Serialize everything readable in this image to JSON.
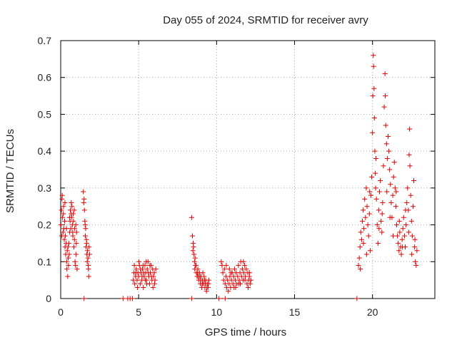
{
  "chart_data": {
    "type": "scatter",
    "title": "Day 055 of 2024, SRMTID for receiver avry",
    "xlabel": "GPS time / hours",
    "ylabel": "SRMTID / TECUs",
    "xlim": [
      0,
      24
    ],
    "ylim": [
      0,
      0.7
    ],
    "xticks": [
      0,
      5,
      10,
      15,
      20
    ],
    "yticks": [
      0,
      0.1,
      0.2,
      0.3,
      0.4,
      0.5,
      0.6,
      0.7
    ],
    "xtick_labels": [
      "0",
      "5",
      "10",
      "15",
      "20"
    ],
    "ytick_labels": [
      "0",
      "0.1",
      "0.2",
      "0.3",
      "0.4",
      "0.5",
      "0.6",
      "0.7"
    ],
    "grid": true,
    "marker_color": "#e00000",
    "series": [
      {
        "name": "SRMTID",
        "marker": "plus",
        "points": [
          [
            0.02,
            0.2
          ],
          [
            0.05,
            0.24
          ],
          [
            0.08,
            0.27
          ],
          [
            0.1,
            0.28
          ],
          [
            0.12,
            0.22
          ],
          [
            0.15,
            0.18
          ],
          [
            0.18,
            0.25
          ],
          [
            0.2,
            0.19
          ],
          [
            0.23,
            0.16
          ],
          [
            0.25,
            0.21
          ],
          [
            0.28,
            0.14
          ],
          [
            0.3,
            0.17
          ],
          [
            0.32,
            0.12
          ],
          [
            0.35,
            0.15
          ],
          [
            0.38,
            0.1
          ],
          [
            0.4,
            0.08
          ],
          [
            0.42,
            0.13
          ],
          [
            0.45,
            0.06
          ],
          [
            0.48,
            0.11
          ],
          [
            0.5,
            0.09
          ],
          [
            0.52,
            0.15
          ],
          [
            0.55,
            0.12
          ],
          [
            0.58,
            0.18
          ],
          [
            0.6,
            0.21
          ],
          [
            0.62,
            0.24
          ],
          [
            0.65,
            0.19
          ],
          [
            0.68,
            0.26
          ],
          [
            0.7,
            0.22
          ],
          [
            0.72,
            0.25
          ],
          [
            0.75,
            0.2
          ],
          [
            0.78,
            0.17
          ],
          [
            0.8,
            0.23
          ],
          [
            0.82,
            0.21
          ],
          [
            0.85,
            0.14
          ],
          [
            0.88,
            0.16
          ],
          [
            0.9,
            0.19
          ],
          [
            0.92,
            0.1
          ],
          [
            0.95,
            0.09
          ],
          [
            0.98,
            0.12
          ],
          [
            1.0,
            0.15
          ],
          [
            1.02,
            0.18
          ],
          [
            1.05,
            0.08
          ],
          [
            0.07,
            0.17
          ],
          [
            0.17,
            0.23
          ],
          [
            0.27,
            0.26
          ],
          [
            0.37,
            0.19
          ],
          [
            0.47,
            0.14
          ],
          [
            0.57,
            0.22
          ],
          [
            0.67,
            0.23
          ],
          [
            0.77,
            0.18
          ],
          [
            0.87,
            0.24
          ],
          [
            0.97,
            0.2
          ],
          [
            1.45,
            0.29
          ],
          [
            1.5,
            0.27
          ],
          [
            1.52,
            0.24
          ],
          [
            1.55,
            0.21
          ],
          [
            1.58,
            0.17
          ],
          [
            1.6,
            0.19
          ],
          [
            1.62,
            0.14
          ],
          [
            1.65,
            0.16
          ],
          [
            1.68,
            0.12
          ],
          [
            1.7,
            0.1
          ],
          [
            1.72,
            0.13
          ],
          [
            1.75,
            0.11
          ],
          [
            1.78,
            0.08
          ],
          [
            1.8,
            0.06
          ],
          [
            1.82,
            0.14
          ],
          [
            1.85,
            0.12
          ],
          [
            1.48,
            0.26
          ],
          [
            1.57,
            0.2
          ],
          [
            1.67,
            0.15
          ],
          [
            1.77,
            0.09
          ],
          [
            4.65,
            0.05
          ],
          [
            4.7,
            0.07
          ],
          [
            4.75,
            0.04
          ],
          [
            4.8,
            0.06
          ],
          [
            4.85,
            0.08
          ],
          [
            4.9,
            0.05
          ],
          [
            4.95,
            0.07
          ],
          [
            5.0,
            0.06
          ],
          [
            5.05,
            0.09
          ],
          [
            5.1,
            0.04
          ],
          [
            5.15,
            0.07
          ],
          [
            5.2,
            0.05
          ],
          [
            5.25,
            0.08
          ],
          [
            5.3,
            0.03
          ],
          [
            5.35,
            0.06
          ],
          [
            5.4,
            0.09
          ],
          [
            5.45,
            0.07
          ],
          [
            5.5,
            0.05
          ],
          [
            5.55,
            0.08
          ],
          [
            5.6,
            0.1
          ],
          [
            5.65,
            0.06
          ],
          [
            5.7,
            0.04
          ],
          [
            5.75,
            0.07
          ],
          [
            5.8,
            0.09
          ],
          [
            5.85,
            0.05
          ],
          [
            5.9,
            0.08
          ],
          [
            5.95,
            0.06
          ],
          [
            6.0,
            0.07
          ],
          [
            6.05,
            0.05
          ],
          [
            6.1,
            0.08
          ],
          [
            4.72,
            0.09
          ],
          [
            4.92,
            0.03
          ],
          [
            5.12,
            0.08
          ],
          [
            5.32,
            0.07
          ],
          [
            5.52,
            0.04
          ],
          [
            5.72,
            0.09
          ],
          [
            5.92,
            0.03
          ],
          [
            4.82,
            0.07
          ],
          [
            5.02,
            0.1
          ],
          [
            5.22,
            0.06
          ],
          [
            5.42,
            0.05
          ],
          [
            5.62,
            0.07
          ],
          [
            5.82,
            0.06
          ],
          [
            6.02,
            0.04
          ],
          [
            5.48,
            0.1
          ],
          [
            5.28,
            0.09
          ],
          [
            8.4,
            0.22
          ],
          [
            8.45,
            0.17
          ],
          [
            8.5,
            0.15
          ],
          [
            8.52,
            0.14
          ],
          [
            8.55,
            0.12
          ],
          [
            8.58,
            0.1
          ],
          [
            8.6,
            0.08
          ],
          [
            8.65,
            0.09
          ],
          [
            8.7,
            0.07
          ],
          [
            8.75,
            0.06
          ],
          [
            8.8,
            0.08
          ],
          [
            8.85,
            0.05
          ],
          [
            8.9,
            0.07
          ],
          [
            8.95,
            0.04
          ],
          [
            9.0,
            0.06
          ],
          [
            9.05,
            0.03
          ],
          [
            9.1,
            0.05
          ],
          [
            9.15,
            0.04
          ],
          [
            9.2,
            0.06
          ],
          [
            9.25,
            0.03
          ],
          [
            9.3,
            0.05
          ],
          [
            9.35,
            0.02
          ],
          [
            9.4,
            0.04
          ],
          [
            9.45,
            0.03
          ],
          [
            9.5,
            0.05
          ],
          [
            8.48,
            0.13
          ],
          [
            8.62,
            0.11
          ],
          [
            8.78,
            0.07
          ],
          [
            8.92,
            0.06
          ],
          [
            9.08,
            0.04
          ],
          [
            9.22,
            0.05
          ],
          [
            9.38,
            0.03
          ],
          [
            9.48,
            0.04
          ],
          [
            8.68,
            0.09
          ],
          [
            8.82,
            0.06
          ],
          [
            8.98,
            0.05
          ],
          [
            9.12,
            0.07
          ],
          [
            9.28,
            0.04
          ],
          [
            10.3,
            0.1
          ],
          [
            10.35,
            0.09
          ],
          [
            10.4,
            0.07
          ],
          [
            10.45,
            0.05
          ],
          [
            10.5,
            0.08
          ],
          [
            10.55,
            0.04
          ],
          [
            10.6,
            0.06
          ],
          [
            10.65,
            0.03
          ],
          [
            10.7,
            0.05
          ],
          [
            10.75,
            0.02
          ],
          [
            10.8,
            0.04
          ],
          [
            10.85,
            0.06
          ],
          [
            10.9,
            0.03
          ],
          [
            10.95,
            0.05
          ],
          [
            11.0,
            0.07
          ],
          [
            11.05,
            0.04
          ],
          [
            11.1,
            0.06
          ],
          [
            11.15,
            0.08
          ],
          [
            11.2,
            0.05
          ],
          [
            11.25,
            0.07
          ],
          [
            11.3,
            0.04
          ],
          [
            11.35,
            0.06
          ],
          [
            11.4,
            0.09
          ],
          [
            11.45,
            0.05
          ],
          [
            11.5,
            0.07
          ],
          [
            11.55,
            0.1
          ],
          [
            11.6,
            0.06
          ],
          [
            11.65,
            0.08
          ],
          [
            11.7,
            0.05
          ],
          [
            11.75,
            0.07
          ],
          [
            11.8,
            0.09
          ],
          [
            11.85,
            0.06
          ],
          [
            11.9,
            0.08
          ],
          [
            11.95,
            0.04
          ],
          [
            12.0,
            0.07
          ],
          [
            12.05,
            0.05
          ],
          [
            12.1,
            0.06
          ],
          [
            12.15,
            0.04
          ],
          [
            12.2,
            0.05
          ],
          [
            10.82,
            0.08
          ],
          [
            11.12,
            0.03
          ],
          [
            11.42,
            0.04
          ],
          [
            11.72,
            0.1
          ],
          [
            12.02,
            0.03
          ],
          [
            10.62,
            0.09
          ],
          [
            10.92,
            0.07
          ],
          [
            11.22,
            0.03
          ],
          [
            11.52,
            0.04
          ],
          [
            11.82,
            0.05
          ],
          [
            12.12,
            0.07
          ],
          [
            19.1,
            0.09
          ],
          [
            19.15,
            0.11
          ],
          [
            19.2,
            0.14
          ],
          [
            19.25,
            0.18
          ],
          [
            19.3,
            0.16
          ],
          [
            19.35,
            0.21
          ],
          [
            19.4,
            0.24
          ],
          [
            19.45,
            0.19
          ],
          [
            19.5,
            0.27
          ],
          [
            19.55,
            0.22
          ],
          [
            19.6,
            0.3
          ],
          [
            19.65,
            0.25
          ],
          [
            19.7,
            0.2
          ],
          [
            19.75,
            0.17
          ],
          [
            19.8,
            0.23
          ],
          [
            19.85,
            0.13
          ],
          [
            19.9,
            0.28
          ],
          [
            19.95,
            0.33
          ],
          [
            20.0,
            0.45
          ],
          [
            20.02,
            0.55
          ],
          [
            20.05,
            0.66
          ],
          [
            20.07,
            0.63
          ],
          [
            20.1,
            0.57
          ],
          [
            20.12,
            0.49
          ],
          [
            20.15,
            0.4
          ],
          [
            20.18,
            0.34
          ],
          [
            20.2,
            0.3
          ],
          [
            20.25,
            0.27
          ],
          [
            20.3,
            0.2
          ],
          [
            20.35,
            0.15
          ],
          [
            20.4,
            0.24
          ],
          [
            20.45,
            0.29
          ],
          [
            20.5,
            0.32
          ],
          [
            20.55,
            0.21
          ],
          [
            20.6,
            0.18
          ],
          [
            20.65,
            0.26
          ],
          [
            20.7,
            0.36
          ],
          [
            20.75,
            0.52
          ],
          [
            20.8,
            0.61
          ],
          [
            20.82,
            0.55
          ],
          [
            20.85,
            0.47
          ],
          [
            20.9,
            0.42
          ],
          [
            20.95,
            0.38
          ],
          [
            21.0,
            0.44
          ],
          [
            21.05,
            0.4
          ],
          [
            21.1,
            0.35
          ],
          [
            21.15,
            0.31
          ],
          [
            21.2,
            0.26
          ],
          [
            21.25,
            0.22
          ],
          [
            21.3,
            0.28
          ],
          [
            21.35,
            0.33
          ],
          [
            21.4,
            0.37
          ],
          [
            21.45,
            0.3
          ],
          [
            21.5,
            0.25
          ],
          [
            21.55,
            0.2
          ],
          [
            21.6,
            0.17
          ],
          [
            21.65,
            0.15
          ],
          [
            21.7,
            0.13
          ],
          [
            21.75,
            0.18
          ],
          [
            21.8,
            0.14
          ],
          [
            21.85,
            0.12
          ],
          [
            21.9,
            0.16
          ],
          [
            21.95,
            0.19
          ],
          [
            22.0,
            0.22
          ],
          [
            22.05,
            0.17
          ],
          [
            22.1,
            0.14
          ],
          [
            22.15,
            0.2
          ],
          [
            22.2,
            0.26
          ],
          [
            22.25,
            0.3
          ],
          [
            22.3,
            0.24
          ],
          [
            22.35,
            0.39
          ],
          [
            22.38,
            0.46
          ],
          [
            22.4,
            0.36
          ],
          [
            22.45,
            0.28
          ],
          [
            22.5,
            0.21
          ],
          [
            22.55,
            0.17
          ],
          [
            22.6,
            0.25
          ],
          [
            22.65,
            0.32
          ],
          [
            22.7,
            0.14
          ],
          [
            22.75,
            0.1
          ],
          [
            22.8,
            0.09
          ],
          [
            22.85,
            0.13
          ],
          [
            19.22,
            0.08
          ],
          [
            19.42,
            0.15
          ],
          [
            19.62,
            0.12
          ],
          [
            19.82,
            0.29
          ],
          [
            20.22,
            0.38
          ],
          [
            20.42,
            0.19
          ],
          [
            20.62,
            0.23
          ],
          [
            20.92,
            0.29
          ],
          [
            21.12,
            0.22
          ],
          [
            21.32,
            0.17
          ],
          [
            21.52,
            0.29
          ],
          [
            21.72,
            0.21
          ],
          [
            21.92,
            0.14
          ],
          [
            22.12,
            0.24
          ],
          [
            22.32,
            0.18
          ],
          [
            22.52,
            0.12
          ],
          [
            22.72,
            0.16
          ],
          [
            1.5,
            0.0
          ],
          [
            4.0,
            0.0
          ],
          [
            4.3,
            0.0
          ],
          [
            4.45,
            0.0
          ],
          [
            4.6,
            0.0
          ],
          [
            8.4,
            0.0
          ],
          [
            10.15,
            0.0
          ],
          [
            10.55,
            0.0
          ],
          [
            19.0,
            0.0
          ]
        ]
      }
    ]
  }
}
